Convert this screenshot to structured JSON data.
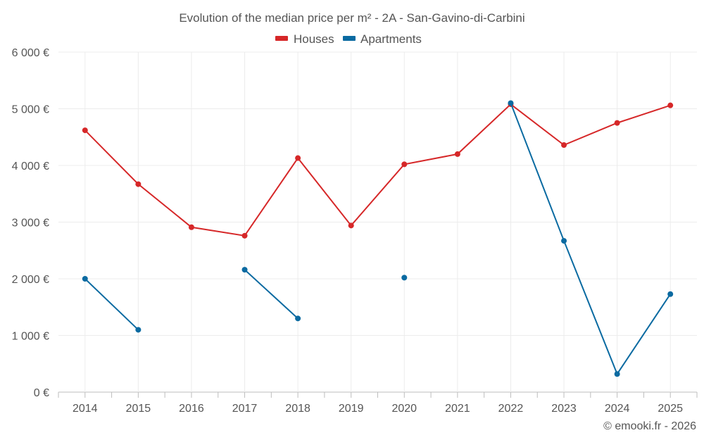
{
  "chart_data": {
    "type": "line",
    "title": "Evolution of the median price per m² - 2A - San-Gavino-di-Carbini",
    "categories": [
      "2014",
      "2015",
      "2016",
      "2017",
      "2018",
      "2019",
      "2020",
      "2021",
      "2022",
      "2023",
      "2024",
      "2025"
    ],
    "series": [
      {
        "name": "Houses",
        "color": "#d62728",
        "values": [
          4620,
          3670,
          2910,
          2760,
          4130,
          2940,
          4020,
          4200,
          5080,
          4360,
          4750,
          5060
        ]
      },
      {
        "name": "Apartments",
        "color": "#0a6aa1",
        "values": [
          2000,
          1100,
          null,
          2160,
          1300,
          null,
          2020,
          null,
          5100,
          2670,
          320,
          1730
        ]
      }
    ],
    "ylim": [
      0,
      6000
    ],
    "yticks": [
      0,
      1000,
      2000,
      3000,
      4000,
      5000,
      6000
    ],
    "ytick_labels": [
      "0 €",
      "1 000 €",
      "2 000 €",
      "3 000 €",
      "4 000 €",
      "5 000 €",
      "6 000 €"
    ],
    "xlabel": "",
    "ylabel": "",
    "legend_position": "top-center",
    "grid": true
  },
  "credit": "© emooki.fr - 2026"
}
